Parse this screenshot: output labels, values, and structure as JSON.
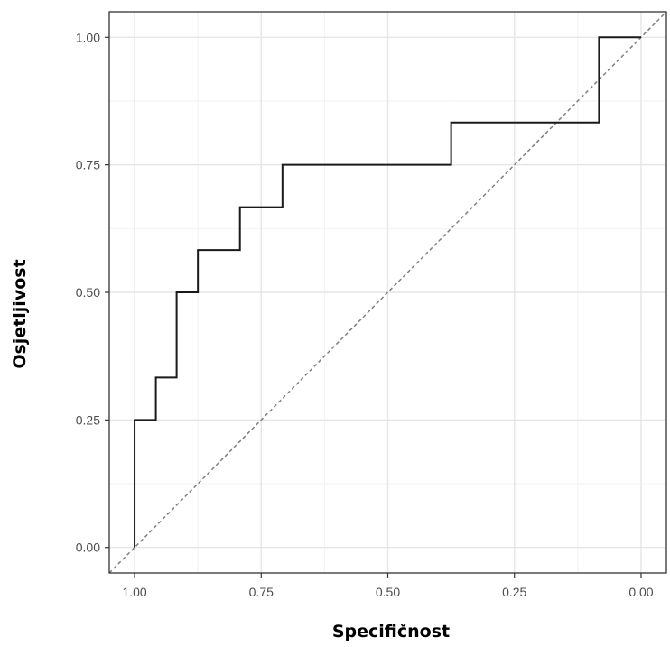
{
  "chart_data": {
    "type": "line",
    "title": "",
    "xlabel": "Specifičnost",
    "ylabel": "Osjetljivost",
    "xlim": [
      1.05,
      -0.05
    ],
    "ylim": [
      -0.05,
      1.05
    ],
    "x_reversed": true,
    "grid": true,
    "legend": "none",
    "x_ticks": [
      {
        "value": 1.0,
        "label": "1.00"
      },
      {
        "value": 0.75,
        "label": "0.75"
      },
      {
        "value": 0.5,
        "label": "0.50"
      },
      {
        "value": 0.25,
        "label": "0.25"
      },
      {
        "value": 0.0,
        "label": "0.00"
      }
    ],
    "y_ticks": [
      {
        "value": 0.0,
        "label": "0.00"
      },
      {
        "value": 0.25,
        "label": "0.25"
      },
      {
        "value": 0.5,
        "label": "0.50"
      },
      {
        "value": 0.75,
        "label": "0.75"
      },
      {
        "value": 1.0,
        "label": "1.00"
      }
    ],
    "series": [
      {
        "kind": "step",
        "color": "#1a1a1a",
        "points": [
          {
            "x": 1.0,
            "y": 0.0
          },
          {
            "x": 1.0,
            "y": 0.25
          },
          {
            "x": 0.958,
            "y": 0.25
          },
          {
            "x": 0.958,
            "y": 0.333
          },
          {
            "x": 0.917,
            "y": 0.333
          },
          {
            "x": 0.917,
            "y": 0.5
          },
          {
            "x": 0.875,
            "y": 0.5
          },
          {
            "x": 0.875,
            "y": 0.583
          },
          {
            "x": 0.792,
            "y": 0.583
          },
          {
            "x": 0.792,
            "y": 0.667
          },
          {
            "x": 0.708,
            "y": 0.667
          },
          {
            "x": 0.708,
            "y": 0.75
          },
          {
            "x": 0.375,
            "y": 0.75
          },
          {
            "x": 0.375,
            "y": 0.833
          },
          {
            "x": 0.083,
            "y": 0.833
          },
          {
            "x": 0.083,
            "y": 1.0
          },
          {
            "x": 0.0,
            "y": 1.0
          }
        ]
      },
      {
        "kind": "reference-diagonal",
        "color": "#7f7f7f",
        "dashed": true,
        "points": [
          {
            "x": 1.05,
            "y": -0.05
          },
          {
            "x": -0.05,
            "y": 1.05
          }
        ]
      }
    ]
  }
}
